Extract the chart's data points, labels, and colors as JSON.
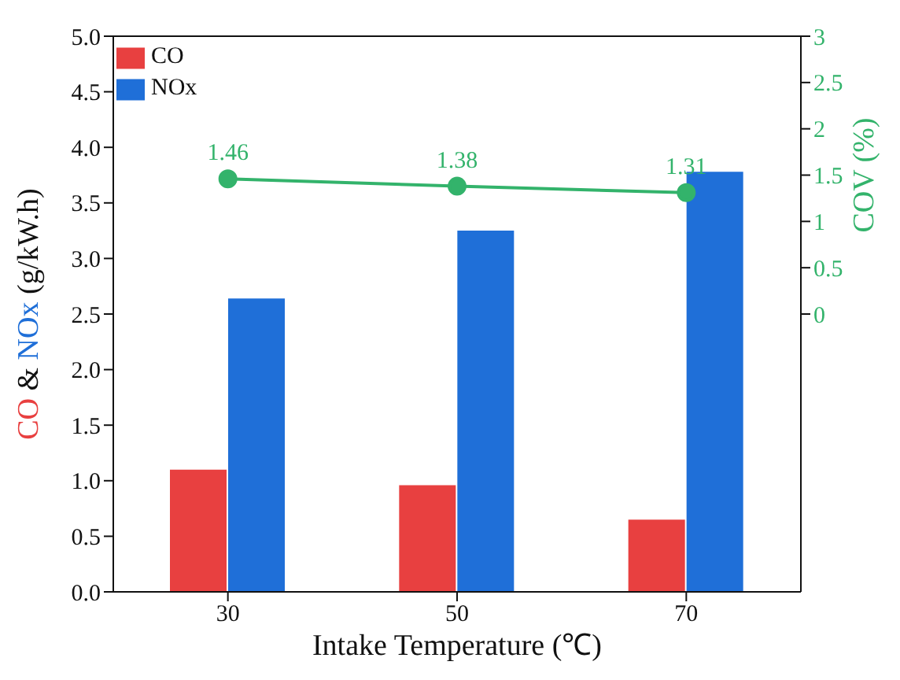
{
  "chart_data": {
    "type": "bar",
    "xlabel": "Intake Temperature (℃)",
    "ylabel": "CO & NOx (g/kW.h)",
    "y2label": "COV (%)",
    "categories": [
      "30",
      "50",
      "70"
    ],
    "series": [
      {
        "name": "CO",
        "color": "#e84040",
        "values": [
          1.1,
          0.96,
          0.65
        ]
      },
      {
        "name": "NOx",
        "color": "#1f6fd8",
        "values": [
          2.64,
          3.25,
          3.78
        ]
      },
      {
        "type": "line",
        "axis": "y2",
        "color": "#33b36b",
        "values": [
          1.46,
          1.38,
          1.31
        ],
        "value_labels": [
          "1.46",
          "1.38",
          "1.31"
        ]
      }
    ],
    "ylim": [
      0,
      5
    ],
    "yticks": [
      {
        "value": 0,
        "label": "0.0"
      },
      0.5,
      {
        "value": 1,
        "label": "1.0"
      },
      1.5,
      {
        "value": 2,
        "label": "2.0"
      },
      2.5,
      {
        "value": 3,
        "label": "3.0"
      },
      3.5,
      {
        "value": 4,
        "label": "4.0"
      },
      4.5,
      {
        "value": 5,
        "label": "5.0"
      }
    ],
    "y2lim": [
      -3,
      3
    ],
    "y2ticks": [
      0,
      0.5,
      1,
      1.5,
      2,
      2.5,
      3
    ],
    "grid": false,
    "legend": "top left",
    "marker": "circle"
  }
}
